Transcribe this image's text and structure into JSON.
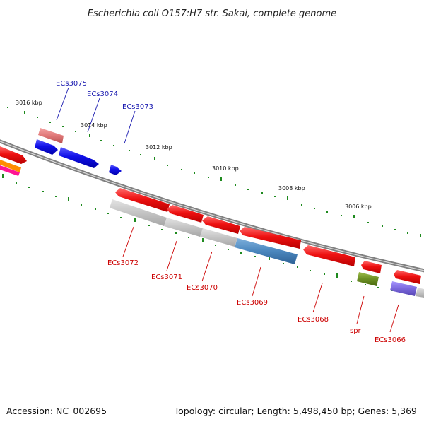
{
  "title": "Escherichia coli O157:H7 str. Sakai, complete genome",
  "footer": {
    "accession": "Accession: NC_002695",
    "summary": "Topology: circular; Length: 5,498,450 bp; Genes: 5,369"
  },
  "colors": {
    "forward_label": "#1a1ab0",
    "reverse_label": "#cc0000",
    "tick": "#1e8a1e",
    "backbone": "#808080"
  },
  "kbp_labels": [
    "3016 kbp",
    "3014 kbp",
    "3012 kbp",
    "3010 kbp",
    "3008 kbp",
    "3006 kbp"
  ],
  "forward_genes": [
    {
      "label": "ECs3075",
      "color": "#e07878"
    },
    {
      "label": "ECs3074",
      "color": "#1010e8"
    },
    {
      "label": "ECs3073",
      "color": "#1010e8"
    }
  ],
  "reverse_genes": [
    {
      "label": "ECs3072",
      "color": "#bdbdbd"
    },
    {
      "label": "ECs3071",
      "color": "#bdbdbd"
    },
    {
      "label": "ECs3070",
      "color": "#bdbdbd"
    },
    {
      "label": "ECs3069",
      "color": "#4a86bd"
    },
    {
      "label": "ECs3068",
      "color": "#ee1111"
    },
    {
      "label": "spr",
      "color": "#6b8e23"
    },
    {
      "label": "ECs3066",
      "color": "#7b68dd"
    }
  ]
}
